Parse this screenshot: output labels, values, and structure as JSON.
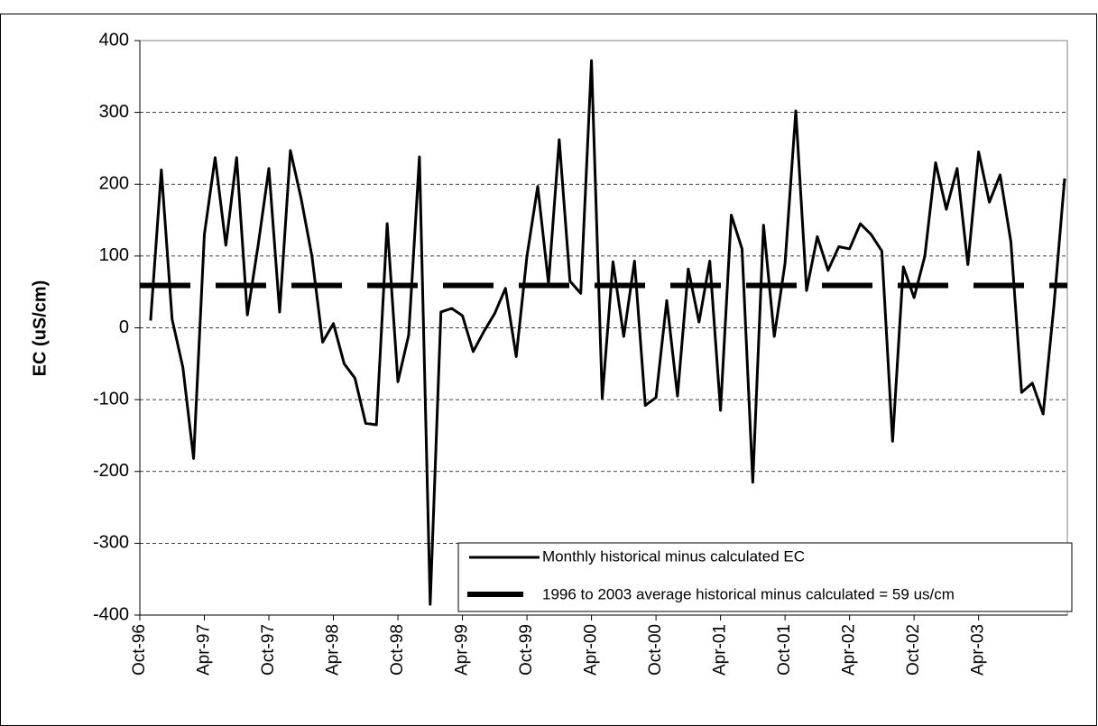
{
  "chart_data": {
    "type": "line",
    "y_label": "EC (uS/cm)",
    "categories": [
      "Oct-96",
      null,
      null,
      null,
      null,
      null,
      "Apr-97",
      null,
      null,
      null,
      null,
      null,
      "Oct-97",
      null,
      null,
      null,
      null,
      null,
      "Apr-98",
      null,
      null,
      null,
      null,
      null,
      "Oct-98",
      null,
      null,
      null,
      null,
      null,
      "Apr-99",
      null,
      null,
      null,
      null,
      null,
      "Oct-99",
      null,
      null,
      null,
      null,
      null,
      "Apr-00",
      null,
      null,
      null,
      null,
      null,
      "Oct-00",
      null,
      null,
      null,
      null,
      null,
      "Apr-01",
      null,
      null,
      null,
      null,
      null,
      "Oct-01",
      null,
      null,
      null,
      null,
      null,
      "Apr-02",
      null,
      null,
      null,
      null,
      null,
      "Oct-02",
      null,
      null,
      null,
      null,
      null,
      "Apr-03",
      null,
      null,
      null,
      null,
      null,
      null,
      null,
      null
    ],
    "series": [
      {
        "name": "Monthly historical minus calculated EC",
        "color": "#000000",
        "values": [
          null,
          10,
          220,
          12,
          -55,
          -182,
          130,
          237,
          115,
          237,
          18,
          115,
          222,
          22,
          247,
          180,
          100,
          -20,
          6,
          -50,
          -70,
          -133,
          -135,
          145,
          -75,
          -10,
          238,
          -385,
          22,
          27,
          17,
          -33,
          -5,
          20,
          55,
          -40,
          100,
          197,
          62,
          262,
          65,
          48,
          372,
          -98,
          92,
          -12,
          93,
          -108,
          -97,
          38,
          -95,
          82,
          8,
          93,
          -115,
          157,
          110,
          -215,
          143,
          -12,
          90,
          302,
          52,
          127,
          80,
          113,
          110,
          145,
          130,
          107,
          -158,
          85,
          42,
          100,
          230,
          165,
          222,
          88,
          245,
          175,
          213,
          120,
          -90,
          -77,
          -120,
          30,
          208
        ]
      }
    ],
    "average_line": {
      "name": "1996 to 2003 average historical minus calculated = 59 us/cm",
      "value": 59,
      "color": "#000000"
    },
    "ylim": [
      -400,
      400
    ],
    "yticks": [
      -400,
      -300,
      -200,
      -100,
      0,
      100,
      200,
      300,
      400
    ],
    "grid": true
  }
}
